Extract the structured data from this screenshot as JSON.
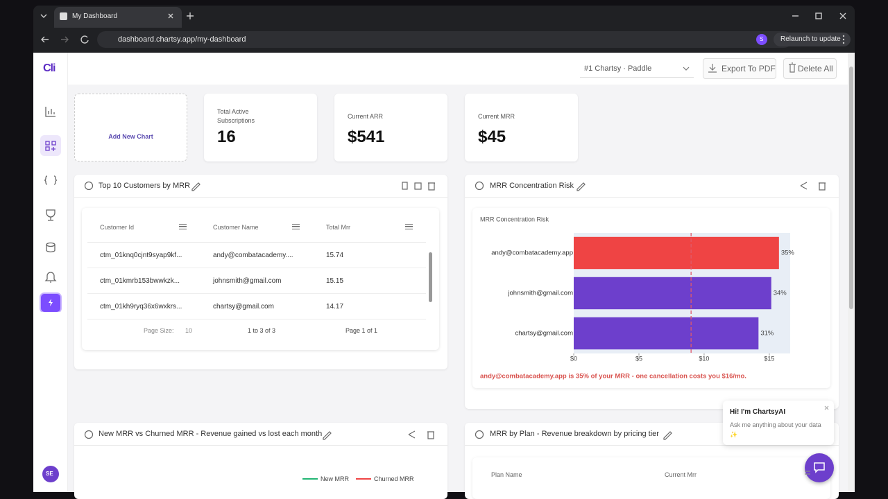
{
  "browser": {
    "tab_title": "My Dashboard",
    "url": "dashboard.chartsy.app/my-dashboard",
    "profile": "S",
    "relaunch": "Relaunch to update"
  },
  "sidebar": {
    "logo": "Cli",
    "avatar": "SE"
  },
  "header": {
    "dataset": "#1 Chartsy · Paddle",
    "export": "Export To PDF",
    "delete": "Delete All"
  },
  "add_card": {
    "label": "Add New Chart"
  },
  "stats": [
    {
      "label": "Total Active Subscriptions",
      "value": "16"
    },
    {
      "label": "Current ARR",
      "value": "$541"
    },
    {
      "label": "Current MRR",
      "value": "$45"
    }
  ],
  "table_panel": {
    "title": "Top 10 Customers by MRR",
    "columns": [
      "Customer Id",
      "Customer Name",
      "Total Mrr"
    ],
    "rows": [
      [
        "ctm_01knq0cjnt9syap9kf...",
        "andy@combatacademy....",
        "15.74"
      ],
      [
        "ctm_01kmrb153bwwkzk...",
        "johnsmith@gmail.com",
        "15.15"
      ],
      [
        "ctm_01kh9ryq36x6wxkrs...",
        "chartsy@gmail.com",
        "14.17"
      ]
    ],
    "page_size_label": "Page Size:",
    "page_size": "10",
    "range": "1 to 3 of 3",
    "page": "Page 1 of 1"
  },
  "chart_panel": {
    "title": "MRR Concentration Risk"
  },
  "chart_data": {
    "type": "bar",
    "orientation": "horizontal",
    "title": "MRR Concentration Risk",
    "categories": [
      "andy@combatacademy.app",
      "johnsmith@gmail.com",
      "chartsy@gmail.com"
    ],
    "values": [
      15.74,
      15.15,
      14.17
    ],
    "share_labels": [
      "35%",
      "34%",
      "31%"
    ],
    "colors": [
      "#ef4444",
      "#6d3fcc",
      "#6d3fcc"
    ],
    "reference_line": 9,
    "reference_color": "#e05a6a",
    "xlim": [
      0,
      16.6
    ],
    "xticks": [
      {
        "value": 0,
        "label": "$0"
      },
      {
        "value": 5,
        "label": "$5"
      },
      {
        "value": 10,
        "label": "$10"
      },
      {
        "value": 15,
        "label": "$15"
      }
    ],
    "annotation": "andy@combatacademy.app is 35% of your MRR - one cancellation costs you $16/mo."
  },
  "bottom_left": {
    "title": "New MRR vs Churned MRR - Revenue gained vs lost each month",
    "legend": [
      "New MRR",
      "Churned MRR"
    ]
  },
  "bottom_right": {
    "title": "MRR by Plan - Revenue breakdown by pricing tier",
    "columns": [
      "Plan Name",
      "Current Mrr"
    ]
  },
  "chat": {
    "title": "Hi! I'm ChartsyAI",
    "text": "Ask me anything about your data ✨"
  }
}
